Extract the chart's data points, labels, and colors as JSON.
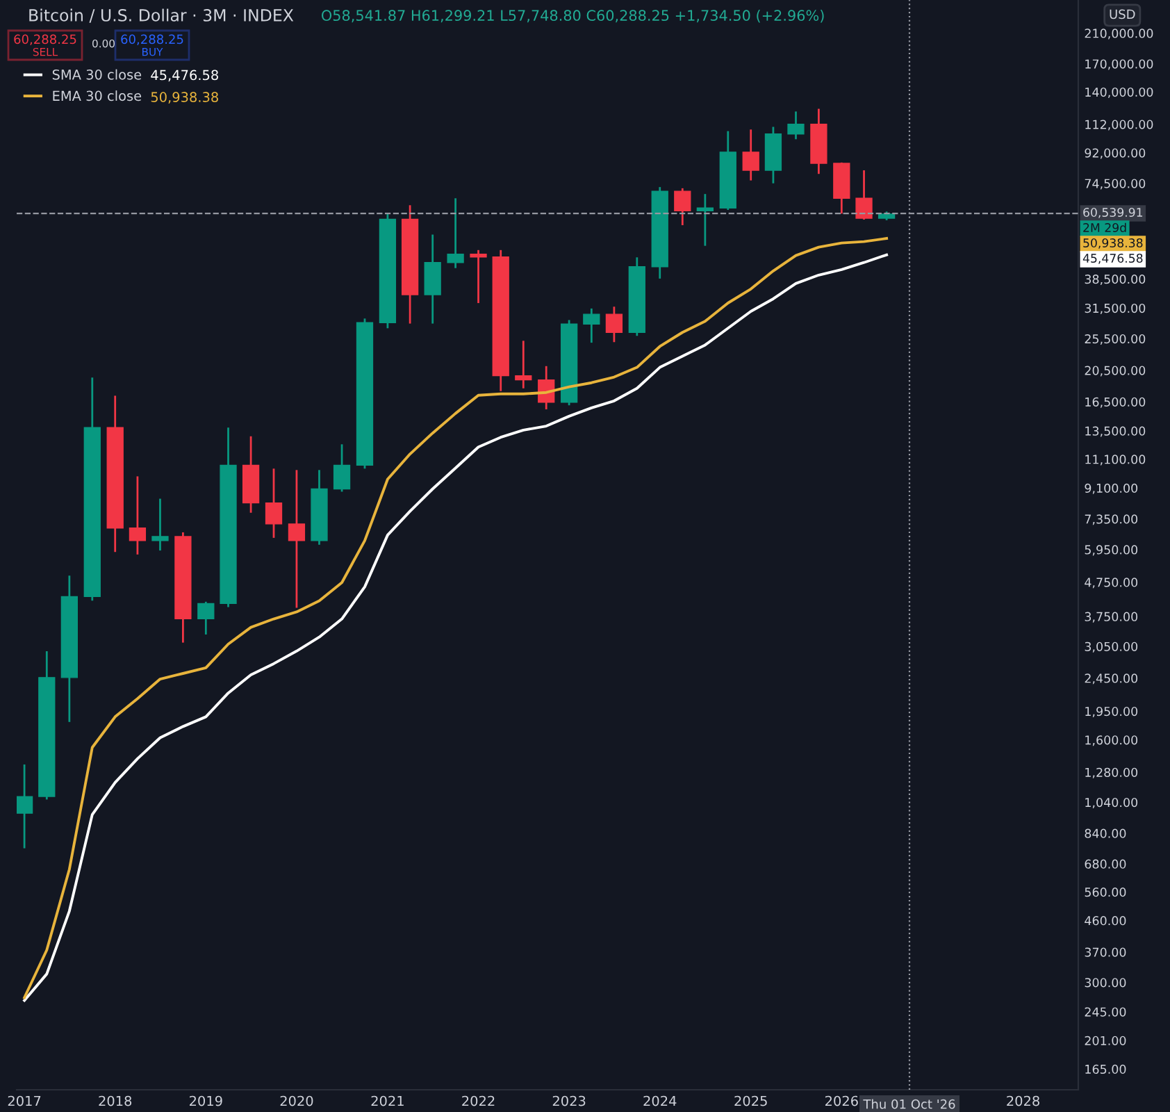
{
  "chart_data": {
    "type": "candlestick",
    "title": "Bitcoin / U.S. Dollar · 3M · INDEX",
    "subtitle": "O58,541.87 H61,299.21 L57,748.80 C60,288.25 +1,734.50 (+2.96%)",
    "annotations": [
      "60,288.25",
      "SELL",
      "0.00",
      "60,288.25",
      "BUY",
      "USD",
      "2M 29d",
      "45,476.58",
      "50,938.38",
      "45,476.58",
      "50,938.38"
    ],
    "x": [
      "2017-01",
      "2017-04",
      "2017-07",
      "2017-10",
      "2018-01",
      "2018-04",
      "2018-07",
      "2018-10",
      "2019-01",
      "2019-04",
      "2019-07",
      "2019-10",
      "2020-01",
      "2020-04",
      "2020-07",
      "2020-10",
      "2021-01",
      "2021-04",
      "2021-07",
      "2021-10",
      "2022-01",
      "2022-04",
      "2022-07",
      "2022-10",
      "2023-01",
      "2023-04",
      "2023-07",
      "2023-10",
      "2024-01",
      "2024-04",
      "2024-07",
      "2024-10",
      "2025-01",
      "2025-04",
      "2025-07",
      "2025-10",
      "2026-01",
      "2026-04",
      "2026-07"
    ],
    "ohlc": [
      [
        964,
        1350,
        757,
        1082
      ],
      [
        1082,
        2950,
        1060,
        2460
      ],
      [
        2460,
        4970,
        1810,
        4300
      ],
      [
        4300,
        19500,
        4180,
        13800
      ],
      [
        13800,
        17200,
        5850,
        6900
      ],
      [
        6900,
        9860,
        5750,
        6330
      ],
      [
        6330,
        8450,
        5910,
        6510
      ],
      [
        6510,
        6700,
        3130,
        3690
      ],
      [
        3690,
        4150,
        3310,
        4100
      ],
      [
        4100,
        13800,
        4000,
        10650
      ],
      [
        10650,
        13000,
        7670,
        8210
      ],
      [
        8210,
        10400,
        6450,
        7100
      ],
      [
        7100,
        10300,
        3980,
        6330
      ],
      [
        6330,
        10300,
        6150,
        9040
      ],
      [
        9040,
        12300,
        8870,
        10650
      ],
      [
        10650,
        29300,
        10400,
        28480
      ],
      [
        28480,
        60450,
        27400,
        58170
      ],
      [
        58170,
        64050,
        28300,
        34550
      ],
      [
        34550,
        52300,
        28300,
        43130
      ],
      [
        43130,
        67200,
        41500,
        45700
      ],
      [
        45700,
        47000,
        32600,
        44800
      ],
      [
        44800,
        47000,
        17760,
        19740
      ],
      [
        19740,
        25130,
        18100,
        19180
      ],
      [
        19180,
        21100,
        15660,
        16440
      ],
      [
        16440,
        29000,
        16100,
        28210
      ],
      [
        28210,
        31400,
        24800,
        30180
      ],
      [
        30180,
        31800,
        24900,
        26630
      ],
      [
        26630,
        44700,
        26000,
        41900
      ],
      [
        41900,
        72600,
        38600,
        70560
      ],
      [
        70560,
        72000,
        55800,
        61630
      ],
      [
        61630,
        69200,
        48400,
        62840
      ],
      [
        62840,
        106800,
        62000,
        92400
      ],
      [
        92400,
        108000,
        76000,
        81540
      ],
      [
        81540,
        110000,
        74500,
        104700
      ],
      [
        104700,
        122300,
        101000,
        112100
      ],
      [
        112100,
        124600,
        79500,
        85540
      ],
      [
        85540,
        86000,
        60450,
        67200
      ],
      [
        67200,
        81500,
        58000,
        58541.87
      ],
      [
        58541.87,
        61299.21,
        57748.8,
        60288.25
      ]
    ],
    "colors": [
      "#089981",
      "#089981",
      "#089981",
      "#089981",
      "#f23645",
      "#f23645",
      "#089981",
      "#f23645",
      "#089981",
      "#089981",
      "#f23645",
      "#f23645",
      "#f23645",
      "#089981",
      "#089981",
      "#089981",
      "#089981",
      "#f23645",
      "#089981",
      "#089981",
      "#f23645",
      "#f23645",
      "#f23645",
      "#f23645",
      "#089981",
      "#089981",
      "#f23645",
      "#089981",
      "#089981",
      "#f23645",
      "#089981",
      "#089981",
      "#f23645",
      "#089981",
      "#089981",
      "#f23645",
      "#f23645",
      "#f23645",
      "#089981"
    ],
    "series": [
      {
        "name": "SMA 30 close",
        "type": "line",
        "color": "#ffffff",
        "values": [
          265,
          318,
          491,
          955,
          1192,
          1405,
          1623,
          1754,
          1876,
          2210,
          2505,
          2707,
          2952,
          3251,
          3686,
          4600,
          6576,
          7747,
          9040,
          10440,
          12070,
          12910,
          13560,
          13950,
          14930,
          15820,
          16600,
          18100,
          20920,
          22600,
          24410,
          27410,
          30780,
          33570,
          37320,
          39550,
          41100,
          43130,
          45476.58
        ]
      },
      {
        "name": "EMA 30 close",
        "type": "line",
        "color": "#e8b43c",
        "values": [
          270,
          375,
          655,
          1518,
          1876,
          2127,
          2434,
          2530,
          2630,
          3098,
          3478,
          3686,
          3868,
          4178,
          4736,
          6326,
          9670,
          11500,
          13290,
          15220,
          17250,
          17420,
          17420,
          17590,
          18280,
          18810,
          19560,
          20920,
          24170,
          26630,
          28750,
          32610,
          35920,
          40700,
          45260,
          47960,
          49360,
          49840,
          50938.38
        ]
      }
    ],
    "log": true,
    "ylim": [
      143,
      264000
    ],
    "yticks": [
      {
        "value": 210000,
        "label": "210,000.00"
      },
      {
        "value": 170000,
        "label": "170,000.00"
      },
      {
        "value": 140000,
        "label": "140,000.00"
      },
      {
        "value": 112000,
        "label": "112,000.00"
      },
      {
        "value": 92000,
        "label": "92,000.00"
      },
      {
        "value": 74500,
        "label": "74,500.00"
      },
      {
        "value": 38500,
        "label": "38,500.00"
      },
      {
        "value": 31500,
        "label": "31,500.00"
      },
      {
        "value": 25500,
        "label": "25,500.00"
      },
      {
        "value": 20500,
        "label": "20,500.00"
      },
      {
        "value": 16500,
        "label": "16,500.00"
      },
      {
        "value": 13500,
        "label": "13,500.00"
      },
      {
        "value": 11100,
        "label": "11,100.00"
      },
      {
        "value": 9100,
        "label": "9,100.00"
      },
      {
        "value": 7350,
        "label": "7,350.00"
      },
      {
        "value": 5950,
        "label": "5,950.00"
      },
      {
        "value": 4750,
        "label": "4,750.00"
      },
      {
        "value": 3750,
        "label": "3,750.00"
      },
      {
        "value": 3050,
        "label": "3,050.00"
      },
      {
        "value": 2450,
        "label": "2,450.00"
      },
      {
        "value": 1950,
        "label": "1,950.00"
      },
      {
        "value": 1600,
        "label": "1,600.00"
      },
      {
        "value": 1280,
        "label": "1,280.00"
      },
      {
        "value": 1040,
        "label": "1,040.00"
      },
      {
        "value": 840,
        "label": "840.00"
      },
      {
        "value": 680,
        "label": "680.00"
      },
      {
        "value": 560,
        "label": "560.00"
      },
      {
        "value": 460,
        "label": "460.00"
      },
      {
        "value": 370,
        "label": "370.00"
      },
      {
        "value": 300,
        "label": "300.00"
      },
      {
        "value": 245,
        "label": "245.00"
      },
      {
        "value": 201,
        "label": "201.00"
      },
      {
        "value": 165,
        "label": "165.00"
      }
    ],
    "xlim": [
      "2016-12-01",
      "2028-08-10"
    ],
    "xticks": [
      {
        "value": "2017-01-01",
        "label": "2017"
      },
      {
        "value": "2018-01-01",
        "label": "2018"
      },
      {
        "value": "2019-01-01",
        "label": "2019"
      },
      {
        "value": "2020-01-01",
        "label": "2020"
      },
      {
        "value": "2021-01-01",
        "label": "2021"
      },
      {
        "value": "2022-01-01",
        "label": "2022"
      },
      {
        "value": "2023-01-01",
        "label": "2023"
      },
      {
        "value": "2024-01-01",
        "label": "2024"
      },
      {
        "value": "2025-01-01",
        "label": "2025"
      },
      {
        "value": "2026-01-01",
        "label": "2026"
      },
      {
        "value": "2028-01-01",
        "label": "2028"
      }
    ],
    "ref_lines": [
      {
        "axis": "y",
        "value": 60539.91,
        "label": "60,539.91",
        "color": "#9598a1",
        "line_style": "dashed"
      },
      {
        "axis": "x",
        "value": "2026-10-01",
        "label": "Thu 01 Oct '26",
        "color": "#9598a1",
        "line_style": "dotted"
      }
    ],
    "grid": false,
    "legend": "top left",
    "marker": "none",
    "line_style": "solid"
  }
}
